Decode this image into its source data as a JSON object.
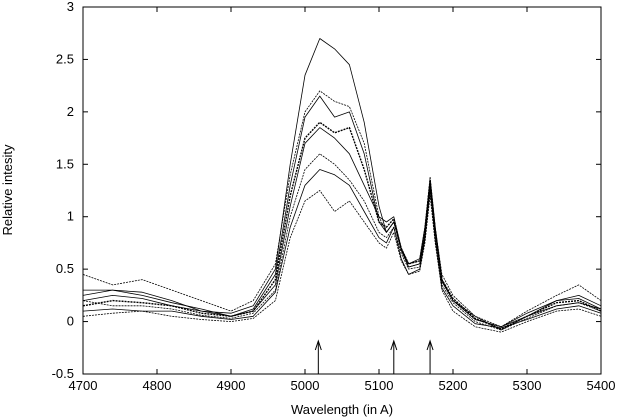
{
  "chart_data": {
    "type": "line",
    "title": "",
    "xlabel": "Wavelength (in A)",
    "ylabel": "Relative intesity",
    "xlim": [
      4700,
      5400
    ],
    "ylim": [
      -0.5,
      3
    ],
    "x_ticks": [
      "4700",
      "4800",
      "4900",
      "5000",
      "5100",
      "5200",
      "5300",
      "5400"
    ],
    "y_ticks": [
      "-0.5",
      "0",
      "0.5",
      "1",
      "1.5",
      "2",
      "2.5",
      "3"
    ],
    "grid": false,
    "legend": "none",
    "line_color": "#000000",
    "markers": [
      {
        "label": "arrow",
        "x": 5018
      },
      {
        "label": "arrow",
        "x": 5120
      },
      {
        "label": "arrow",
        "x": 5169
      }
    ],
    "x": [
      4700,
      4740,
      4780,
      4820,
      4860,
      4900,
      4930,
      4960,
      4980,
      5000,
      5020,
      5040,
      5060,
      5080,
      5100,
      5110,
      5120,
      5130,
      5140,
      5155,
      5162,
      5169,
      5176,
      5185,
      5200,
      5230,
      5265,
      5300,
      5340,
      5370,
      5400
    ],
    "series": [
      {
        "values": [
          0.2,
          0.25,
          0.22,
          0.15,
          0.1,
          0.08,
          0.15,
          0.5,
          1.5,
          2.35,
          2.7,
          2.6,
          2.45,
          1.9,
          1.1,
          0.85,
          0.95,
          0.7,
          0.55,
          0.6,
          0.9,
          1.35,
          0.9,
          0.4,
          0.2,
          0.05,
          -0.08,
          0.05,
          0.2,
          0.25,
          0.15
        ]
      },
      {
        "values": [
          0.45,
          0.35,
          0.4,
          0.3,
          0.2,
          0.1,
          0.2,
          0.55,
          1.4,
          2.0,
          2.2,
          2.1,
          2.05,
          1.7,
          1.0,
          0.85,
          0.95,
          0.7,
          0.55,
          0.58,
          0.85,
          1.38,
          0.9,
          0.45,
          0.25,
          0.05,
          -0.05,
          0.1,
          0.25,
          0.35,
          0.2
        ]
      },
      {
        "values": [
          0.25,
          0.3,
          0.25,
          0.18,
          0.12,
          0.05,
          0.12,
          0.45,
          1.3,
          1.95,
          2.15,
          1.95,
          2.0,
          1.6,
          0.95,
          0.85,
          0.95,
          0.68,
          0.52,
          0.55,
          0.85,
          1.3,
          0.85,
          0.4,
          0.2,
          0.02,
          -0.05,
          0.08,
          0.2,
          0.22,
          0.12
        ]
      },
      {
        "values": [
          0.15,
          0.2,
          0.18,
          0.15,
          0.08,
          0.05,
          0.1,
          0.4,
          1.2,
          1.75,
          1.9,
          1.8,
          1.85,
          1.45,
          0.95,
          0.9,
          0.98,
          0.7,
          0.55,
          0.58,
          0.88,
          1.35,
          0.88,
          0.4,
          0.22,
          0.03,
          -0.07,
          0.05,
          0.18,
          0.2,
          0.1
        ]
      },
      {
        "values": [
          0.3,
          0.3,
          0.28,
          0.2,
          0.1,
          0.05,
          0.1,
          0.35,
          1.1,
          1.7,
          1.85,
          1.75,
          1.6,
          1.3,
          1.0,
          0.95,
          1.0,
          0.7,
          0.52,
          0.55,
          0.8,
          1.25,
          0.85,
          0.38,
          0.2,
          0.02,
          -0.05,
          0.05,
          0.15,
          0.18,
          0.12
        ]
      },
      {
        "values": [
          0.2,
          0.15,
          0.15,
          0.12,
          0.06,
          0.03,
          0.08,
          0.3,
          1.0,
          1.45,
          1.6,
          1.5,
          1.35,
          1.15,
          0.85,
          0.8,
          0.9,
          0.65,
          0.5,
          0.52,
          0.8,
          1.3,
          0.8,
          0.35,
          0.18,
          0.0,
          -0.08,
          0.03,
          0.15,
          0.18,
          0.1
        ]
      },
      {
        "values": [
          0.1,
          0.12,
          0.1,
          0.1,
          0.05,
          0.02,
          0.05,
          0.28,
          0.9,
          1.3,
          1.45,
          1.4,
          1.3,
          1.05,
          0.8,
          0.75,
          0.9,
          0.6,
          0.45,
          0.5,
          0.78,
          1.28,
          0.78,
          0.32,
          0.15,
          -0.02,
          -0.06,
          0.02,
          0.12,
          0.15,
          0.08
        ]
      },
      {
        "values": [
          0.05,
          0.08,
          0.1,
          0.05,
          0.02,
          0.0,
          0.03,
          0.2,
          0.8,
          1.15,
          1.25,
          1.05,
          1.15,
          0.95,
          0.75,
          0.7,
          0.85,
          0.58,
          0.45,
          0.48,
          0.75,
          1.2,
          0.75,
          0.3,
          0.1,
          -0.05,
          -0.1,
          0.0,
          0.1,
          0.12,
          0.05
        ]
      }
    ]
  }
}
